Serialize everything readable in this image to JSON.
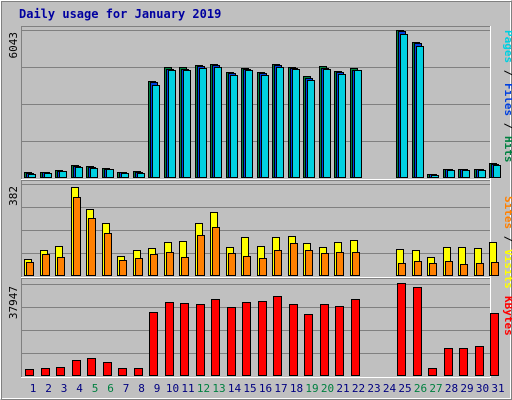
{
  "chart_data": {
    "type": "bar",
    "title": "Daily usage for January 2019",
    "days": [
      "1",
      "2",
      "3",
      "4",
      "5",
      "6",
      "7",
      "8",
      "9",
      "10",
      "11",
      "12",
      "13",
      "14",
      "15",
      "16",
      "17",
      "18",
      "19",
      "20",
      "21",
      "22",
      "23",
      "24",
      "25",
      "26",
      "27",
      "28",
      "29",
      "30",
      "31"
    ],
    "weekend_days": [
      "5",
      "6",
      "12",
      "13",
      "19",
      "20",
      "26",
      "27"
    ],
    "panels": [
      {
        "id": "top",
        "ymax_label": "6043",
        "ymax": 6043,
        "legend": [
          {
            "text": "Pages",
            "color": "#00d0e0"
          },
          {
            "text": " / ",
            "color": "#000000"
          },
          {
            "text": "Files",
            "color": "#0040e0"
          },
          {
            "text": " / ",
            "color": "#000000"
          },
          {
            "text": "Hits",
            "color": "#008040"
          }
        ],
        "series": [
          {
            "name": "Hits",
            "color": "#008040",
            "values": [
              230,
              260,
              330,
              520,
              470,
              400,
              250,
              270,
              3970,
              4520,
              4520,
              4620,
              4650,
              4310,
              4500,
              4330,
              4650,
              4550,
              4160,
              4560,
              4370,
              4480,
              0,
              0,
              6043,
              5550,
              180,
              370,
              380,
              370,
              600
            ]
          },
          {
            "name": "Files",
            "color": "#0040e0",
            "values": [
              200,
              240,
              300,
              490,
              450,
              380,
              230,
              250,
              3900,
              4470,
              4460,
              4560,
              4600,
              4270,
              4440,
              4280,
              4600,
              4490,
              4100,
              4500,
              4320,
              4420,
              0,
              0,
              6000,
              5500,
              160,
              350,
              360,
              350,
              570
            ]
          },
          {
            "name": "Pages",
            "color": "#00d0e0",
            "values": [
              170,
              210,
              270,
              460,
              420,
              350,
              200,
              220,
              3800,
              4400,
              4400,
              4500,
              4550,
              4200,
              4400,
              4200,
              4550,
              4450,
              4000,
              4450,
              4250,
              4400,
              0,
              0,
              5900,
              5400,
              140,
              320,
              330,
              320,
              530
            ]
          }
        ]
      },
      {
        "id": "mid",
        "ymax_label": "382",
        "ymax": 382,
        "legend": [
          {
            "text": "Sites",
            "color": "#ff8000"
          },
          {
            "text": " / ",
            "color": "#000000"
          },
          {
            "text": "Visits",
            "color": "#ffff00"
          }
        ],
        "series": [
          {
            "name": "Visits",
            "color": "#ffff00",
            "values": [
              70,
              110,
              125,
              370,
              280,
              220,
              85,
              110,
              115,
              140,
              145,
              220,
              267,
              120,
              160,
              125,
              160,
              165,
              135,
              120,
              140,
              150,
              0,
              0,
              112,
              106,
              77,
              120,
              119,
              117,
              143
            ]
          },
          {
            "name": "Sites",
            "color": "#ff8000",
            "values": [
              60,
              92,
              80,
              330,
              240,
              180,
              67,
              73,
              90,
              100,
              80,
              170,
              205,
              95,
              83,
              73,
              110,
              137,
              110,
              95,
              100,
              100,
              0,
              0,
              55,
              63,
              52,
              62,
              49,
              52,
              60
            ]
          }
        ]
      },
      {
        "id": "bottom",
        "ymax_label": "37947",
        "ymax": 37947,
        "legend": [
          {
            "text": "KBytes",
            "color": "#ff0000"
          }
        ],
        "series": [
          {
            "name": "KBytes",
            "color": "#ff0000",
            "values": [
              2800,
              3300,
              3800,
              6800,
              7400,
              5600,
              3300,
              3300,
              26500,
              30600,
              30100,
              29900,
              31900,
              28500,
              30400,
              30800,
              33000,
              29500,
              25500,
              29900,
              29000,
              31700,
              0,
              0,
              38200,
              36800,
              3300,
              11500,
              11500,
              12500,
              25800
            ]
          }
        ]
      }
    ]
  }
}
